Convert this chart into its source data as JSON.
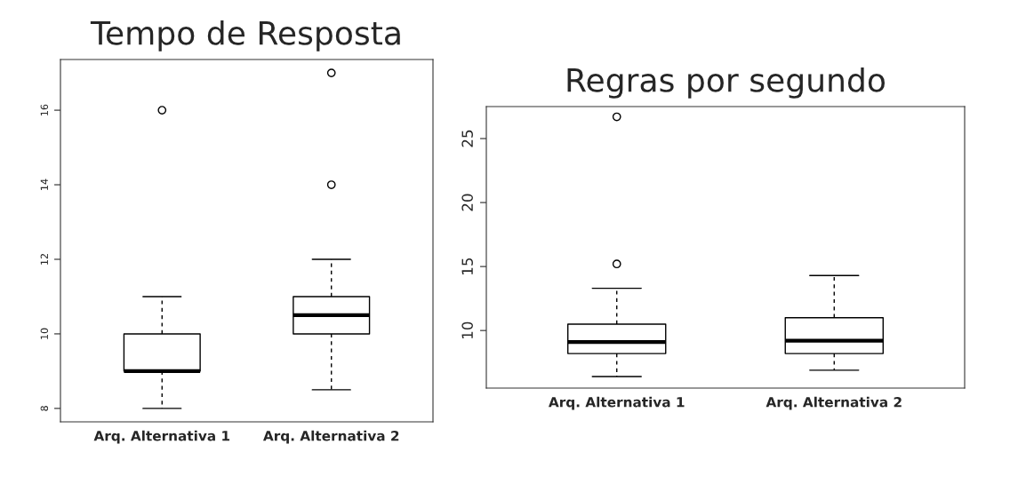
{
  "chart_data": [
    {
      "type": "box",
      "title": "Tempo de Resposta",
      "categories": [
        "Arq. Alternativa 1",
        "Arq. Alternativa 2"
      ],
      "ylim": [
        7.64,
        17.36
      ],
      "yticks": [
        8,
        10,
        12,
        14,
        16
      ],
      "grid": false,
      "legend": false,
      "boxes": [
        {
          "low": 8,
          "q1": 9,
          "median": 9,
          "q3": 10,
          "high": 11,
          "outliers": [
            16
          ]
        },
        {
          "low": 8.5,
          "q1": 10,
          "median": 10.5,
          "q3": 11,
          "high": 12,
          "outliers": [
            14,
            17
          ]
        }
      ]
    },
    {
      "type": "box",
      "title": "Regras por segundo",
      "categories": [
        "Arq. Alternativa 1",
        "Arq. Alternativa 2"
      ],
      "ylim": [
        5.5,
        27.5
      ],
      "yticks": [
        10,
        15,
        20,
        25
      ],
      "grid": false,
      "legend": false,
      "boxes": [
        {
          "low": 6.4,
          "q1": 8.2,
          "median": 9.1,
          "q3": 10.5,
          "high": 13.3,
          "outliers": [
            15.2,
            26.7
          ]
        },
        {
          "low": 6.9,
          "q1": 8.2,
          "median": 9.2,
          "q3": 11.0,
          "high": 14.3
        }
      ]
    }
  ]
}
